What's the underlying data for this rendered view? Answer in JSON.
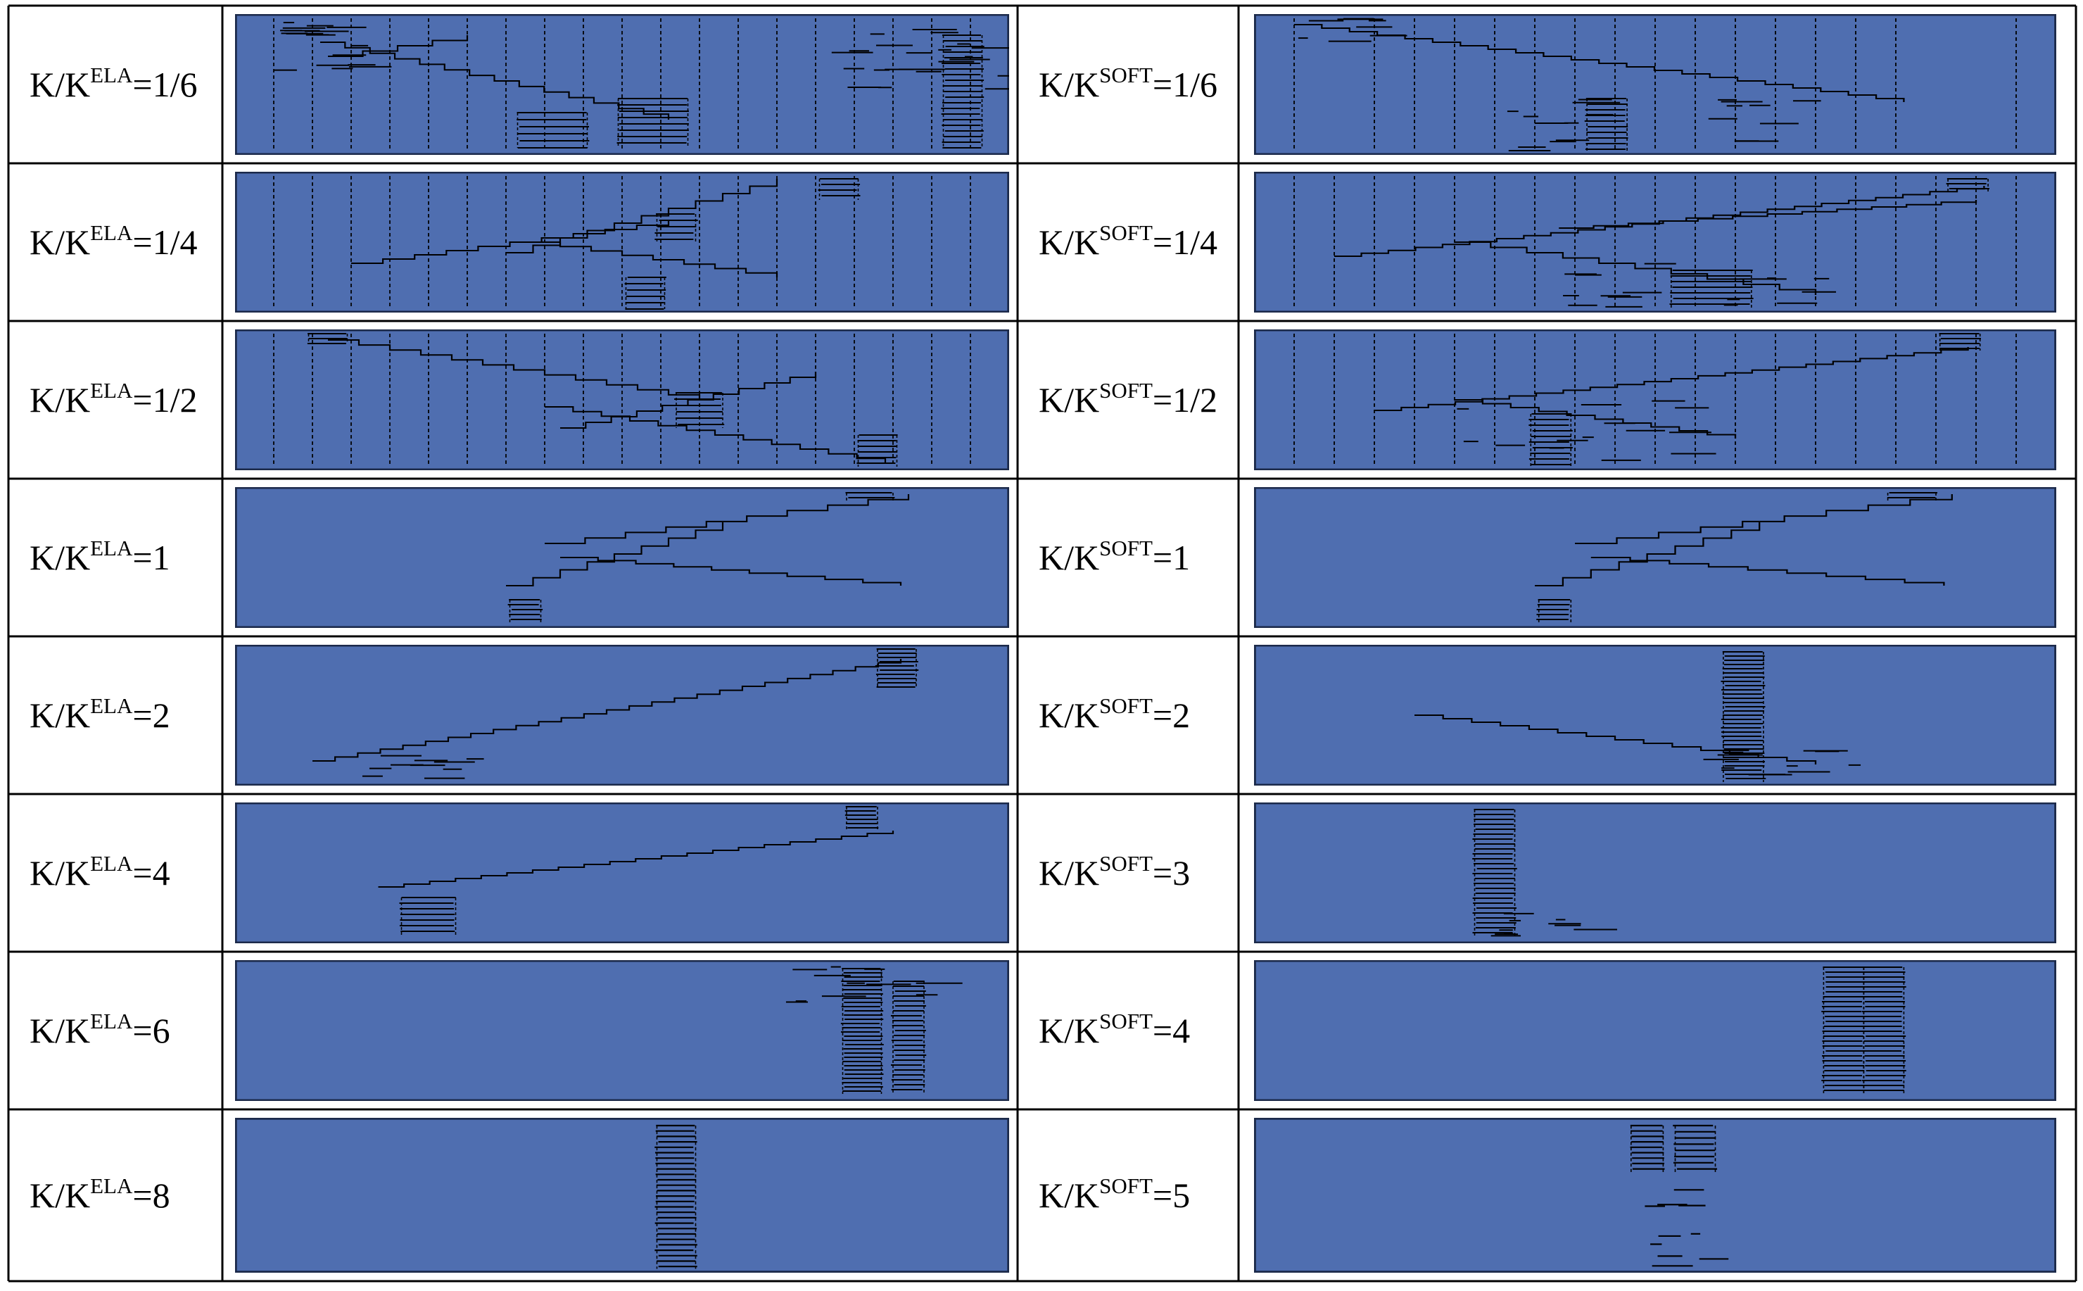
{
  "colors": {
    "panel_fill": "#4f6eb0",
    "panel_border": "#1c2a4a",
    "line": "#000000",
    "grid": "#000000"
  },
  "columns": [
    {
      "label_prefix": "K/K",
      "label_sup": "ELA",
      "rows": [
        {
          "value": "=1/6",
          "pattern": "scatter-early"
        },
        {
          "value": "=1/4",
          "pattern": "cross-mid"
        },
        {
          "value": "=1/2",
          "pattern": "cross-left"
        },
        {
          "value": "=1",
          "pattern": "v-single"
        },
        {
          "value": "=2",
          "pattern": "diag-long"
        },
        {
          "value": "=4",
          "pattern": "diag-short"
        },
        {
          "value": "=6",
          "pattern": "stack-right"
        },
        {
          "value": "=8",
          "pattern": "stack-center"
        }
      ]
    },
    {
      "label_prefix": "K/K",
      "label_sup": "SOFT",
      "rows": [
        {
          "value": "=1/6",
          "pattern": "scatter-desc"
        },
        {
          "value": "=1/4",
          "pattern": "cross-fan"
        },
        {
          "value": "=1/2",
          "pattern": "cross-fan2"
        },
        {
          "value": "=1",
          "pattern": "v-single"
        },
        {
          "value": "=2",
          "pattern": "diag-stack"
        },
        {
          "value": "=3",
          "pattern": "stack-left"
        },
        {
          "value": "=4",
          "pattern": "stack-double"
        },
        {
          "value": "=5",
          "pattern": "stack-sparse"
        }
      ]
    }
  ]
}
